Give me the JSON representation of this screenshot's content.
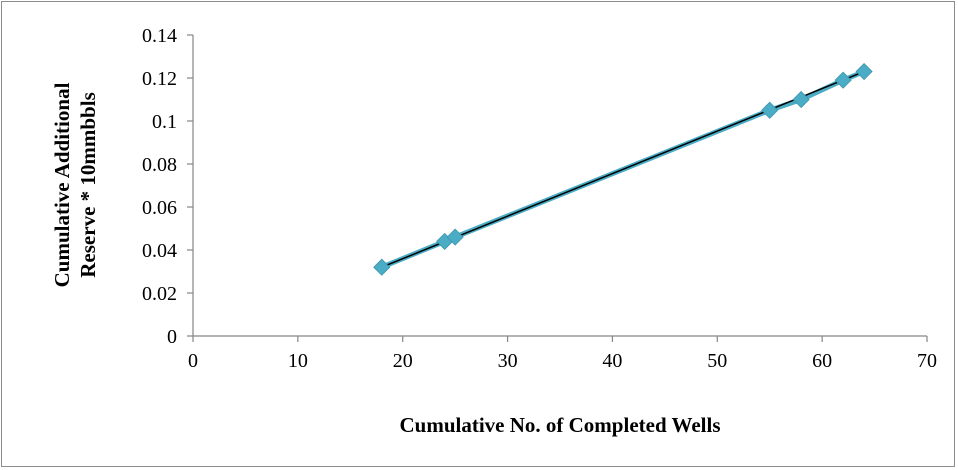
{
  "chart_data": {
    "type": "scatter",
    "xlabel": "Cumulative No. of Completed Wells",
    "ylabel": [
      "Cumulative Additional",
      "Reserve * 10mmbbls"
    ],
    "xlim": [
      0,
      70
    ],
    "ylim": [
      0,
      0.14
    ],
    "x_ticks": [
      "0",
      "10",
      "20",
      "30",
      "40",
      "50",
      "60",
      "70"
    ],
    "y_ticks": [
      "0",
      "0.02",
      "0.04",
      "0.06",
      "0.08",
      "0.1",
      "0.12",
      "0.14"
    ],
    "grid": false,
    "legend": "none",
    "marker_color": "#4bacc6",
    "series": [
      {
        "marker": "diamond",
        "x": [
          18,
          24,
          25,
          55,
          58,
          62,
          64
        ],
        "y": [
          0.032,
          0.044,
          0.046,
          0.105,
          0.11,
          0.119,
          0.123
        ]
      }
    ],
    "trendline": {
      "type": "linear",
      "color": "#000000",
      "x": [
        18,
        64
      ],
      "y": [
        0.032,
        0.123
      ]
    }
  }
}
